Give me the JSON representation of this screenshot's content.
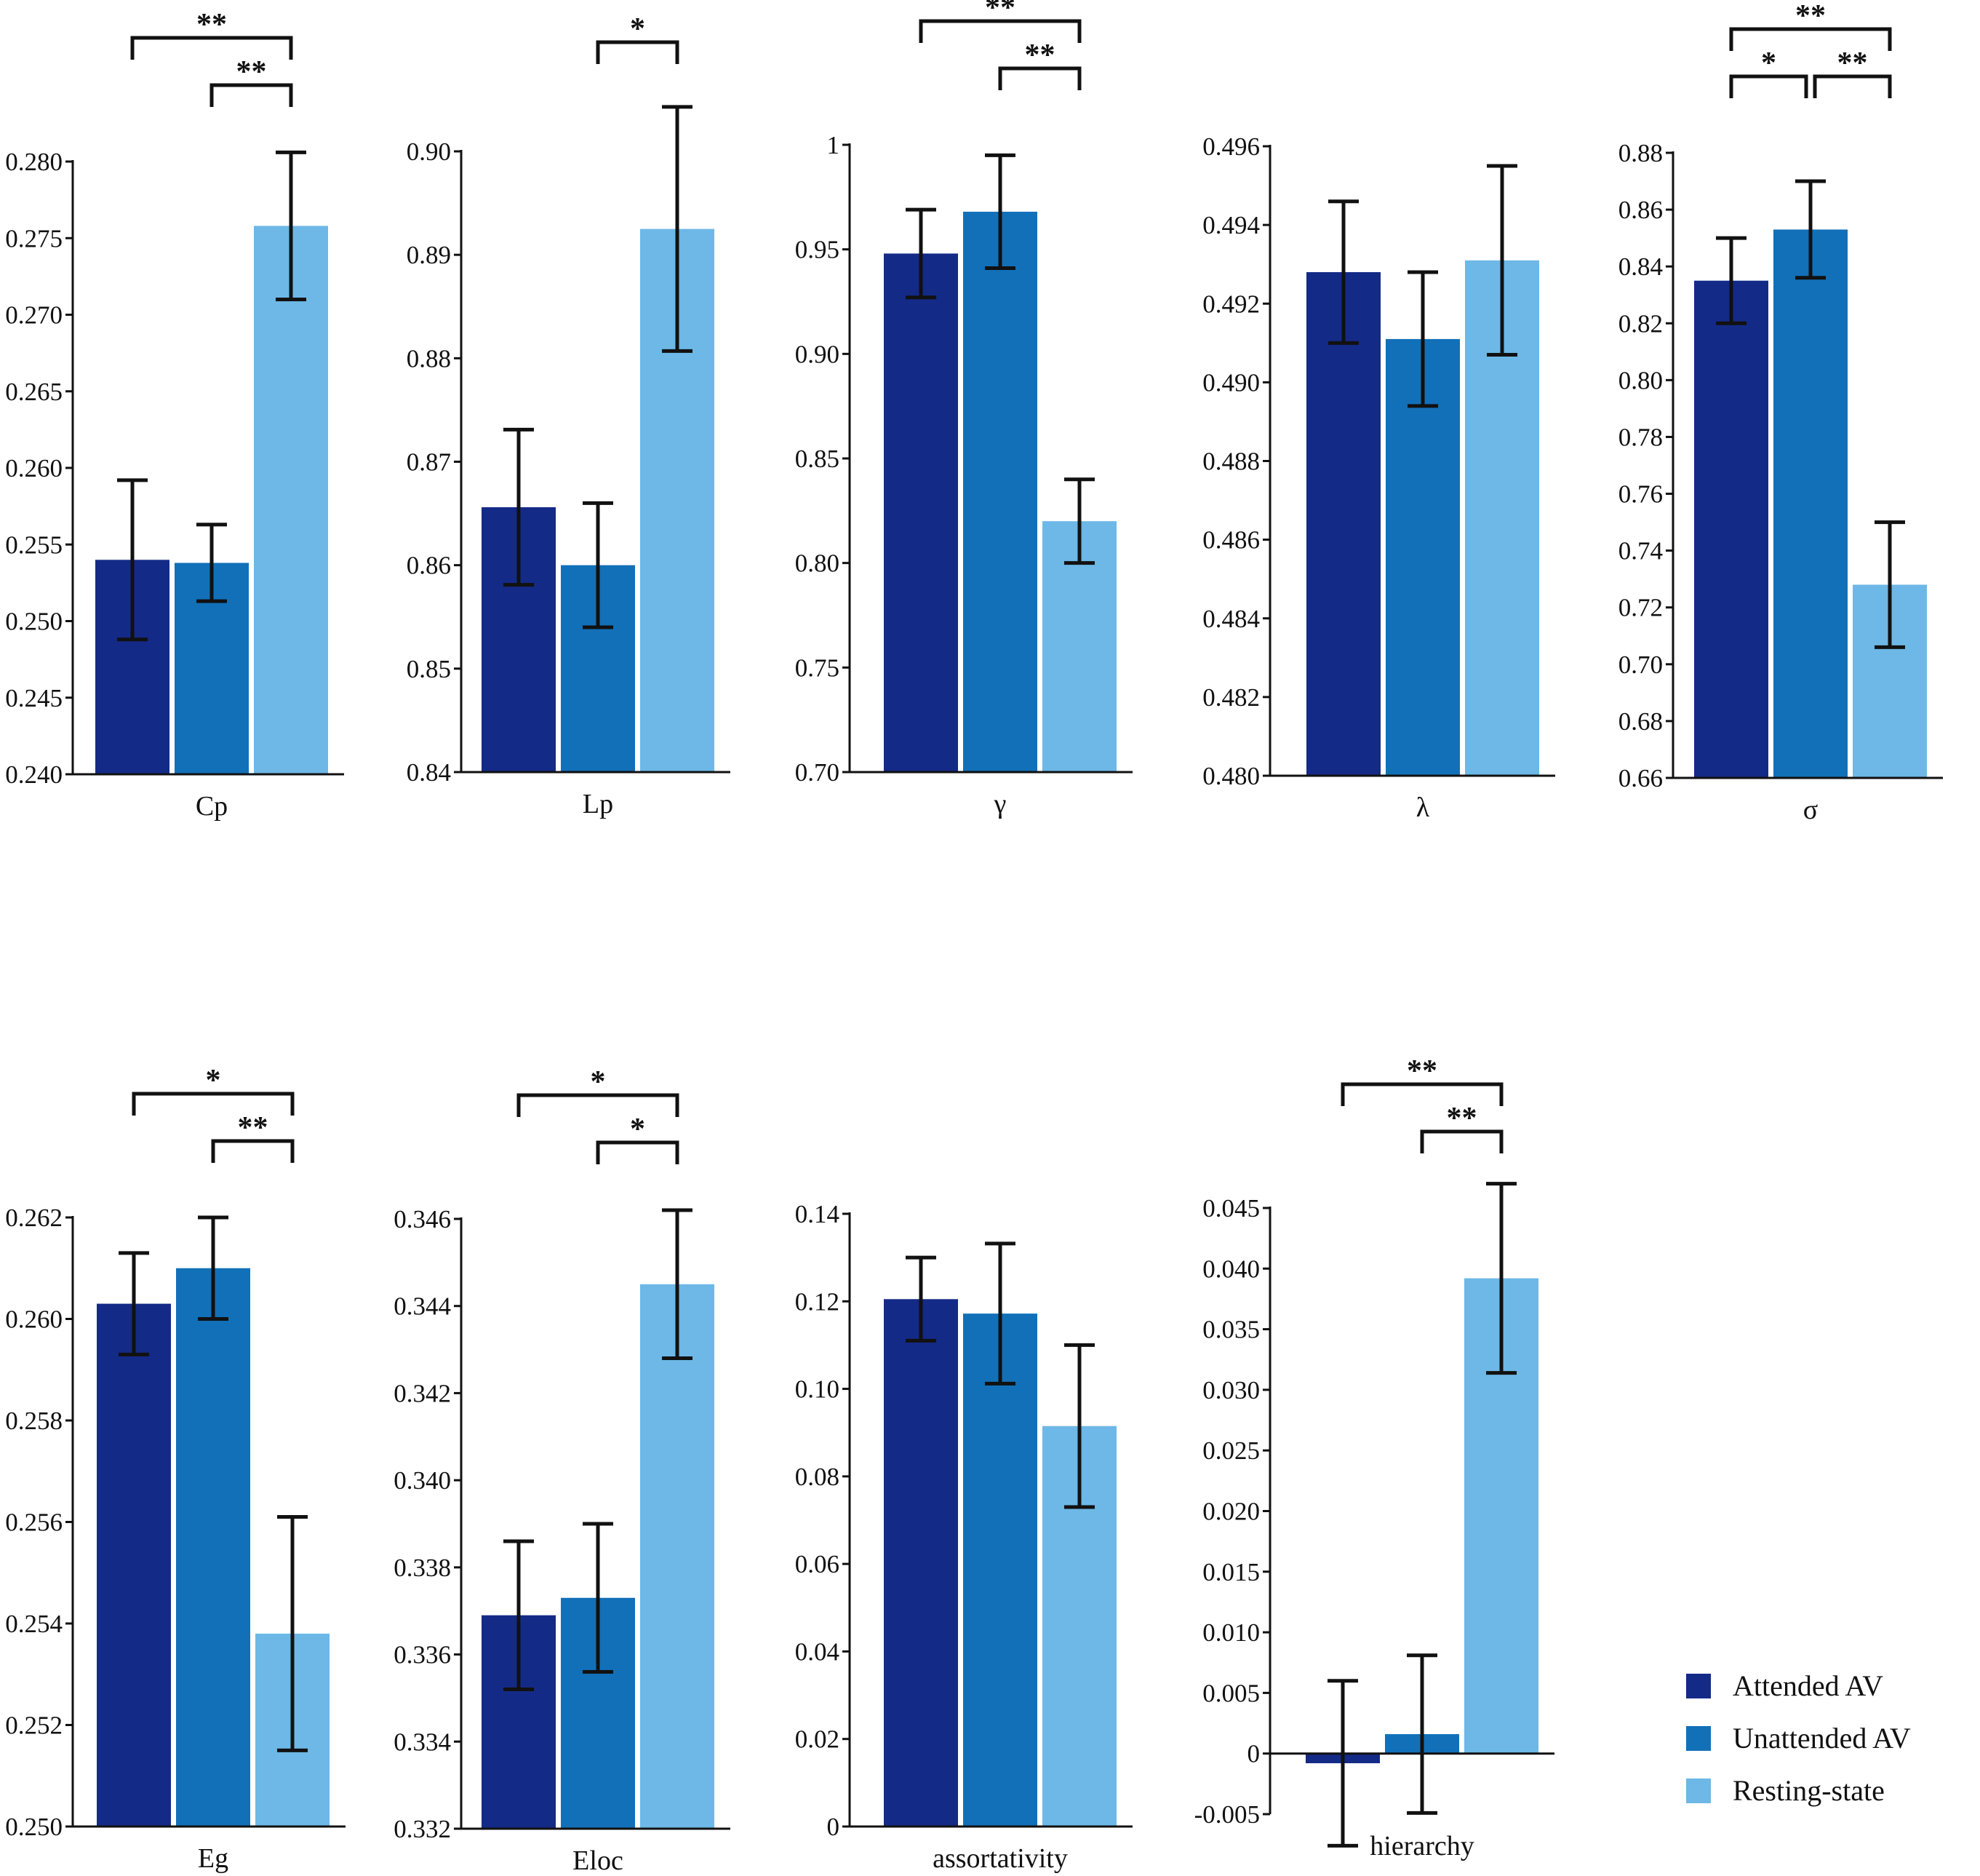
{
  "legend": {
    "items": [
      {
        "label": "Attended AV",
        "color": "#142a87"
      },
      {
        "label": "Unattended AV",
        "color": "#1270b8"
      },
      {
        "label": "Resting-state",
        "color": "#6db8e6"
      }
    ]
  },
  "chart_data": [
    {
      "type": "bar",
      "xlabel": "Cp",
      "series_values": [
        0.254,
        0.2538,
        0.2758
      ],
      "errors": [
        0.0052,
        0.0025,
        0.0048
      ],
      "ylim": [
        0.24,
        0.28
      ],
      "ticks": [
        0.24,
        0.245,
        0.25,
        0.255,
        0.26,
        0.265,
        0.27,
        0.275,
        0.28
      ],
      "tick_labels": [
        "0.240",
        "0.245",
        "0.250",
        "0.255",
        "0.260",
        "0.265",
        "0.270",
        "0.275",
        "0.280"
      ],
      "significance": [
        {
          "from": 0,
          "to": 2,
          "label": "**"
        },
        {
          "from": 1,
          "to": 2,
          "label": "**"
        }
      ]
    },
    {
      "type": "bar",
      "xlabel": "Lp",
      "series_values": [
        0.8656,
        0.86,
        0.8925
      ],
      "errors": [
        0.0075,
        0.006,
        0.0118
      ],
      "ylim": [
        0.84,
        0.9
      ],
      "ticks": [
        0.84,
        0.85,
        0.86,
        0.87,
        0.88,
        0.89,
        0.9
      ],
      "tick_labels": [
        "0.84",
        "0.85",
        "0.86",
        "0.87",
        "0.88",
        "0.89",
        "0.90"
      ],
      "significance": [
        {
          "from": 1,
          "to": 2,
          "label": "*"
        }
      ]
    },
    {
      "type": "bar",
      "xlabel": "γ",
      "series_values": [
        0.948,
        0.968,
        0.82
      ],
      "errors": [
        0.021,
        0.027,
        0.02
      ],
      "ylim": [
        0.7,
        1.0
      ],
      "ticks": [
        0.7,
        0.75,
        0.8,
        0.85,
        0.9,
        0.95,
        1.0
      ],
      "tick_labels": [
        "0.70",
        "0.75",
        "0.80",
        "0.85",
        "0.90",
        "0.95",
        "1"
      ],
      "significance": [
        {
          "from": 0,
          "to": 2,
          "label": "**"
        },
        {
          "from": 1,
          "to": 2,
          "label": "**"
        }
      ]
    },
    {
      "type": "bar",
      "xlabel": "λ",
      "series_values": [
        0.4928,
        0.4911,
        0.4931
      ],
      "errors": [
        0.0018,
        0.0017,
        0.0024
      ],
      "ylim": [
        0.48,
        0.496
      ],
      "ticks": [
        0.48,
        0.482,
        0.484,
        0.486,
        0.488,
        0.49,
        0.492,
        0.494,
        0.496
      ],
      "tick_labels": [
        "0.480",
        "0.482",
        "0.484",
        "0.486",
        "0.488",
        "0.490",
        "0.492",
        "0.494",
        "0.496"
      ],
      "significance": []
    },
    {
      "type": "bar",
      "xlabel": "σ",
      "series_values": [
        0.835,
        0.853,
        0.728
      ],
      "errors": [
        0.015,
        0.017,
        0.022
      ],
      "ylim": [
        0.66,
        0.88
      ],
      "ticks": [
        0.66,
        0.68,
        0.7,
        0.72,
        0.74,
        0.76,
        0.78,
        0.8,
        0.82,
        0.84,
        0.86,
        0.88
      ],
      "tick_labels": [
        "0.66",
        "0.68",
        "0.70",
        "0.72",
        "0.74",
        "0.76",
        "0.78",
        "0.80",
        "0.82",
        "0.84",
        "0.86",
        "0.88"
      ],
      "significance": [
        {
          "from": 0,
          "to": 2,
          "label": "**"
        },
        {
          "from": 0,
          "to": 1,
          "label": "*"
        },
        {
          "from": 1,
          "to": 2,
          "label": "**"
        }
      ]
    },
    {
      "type": "bar",
      "xlabel": "Eg",
      "series_values": [
        0.2603,
        0.261,
        0.2538
      ],
      "errors": [
        0.001,
        0.001,
        0.0023
      ],
      "ylim": [
        0.25,
        0.262
      ],
      "ticks": [
        0.25,
        0.252,
        0.254,
        0.256,
        0.258,
        0.26,
        0.262
      ],
      "tick_labels": [
        "0.250",
        "0.252",
        "0.254",
        "0.256",
        "0.258",
        "0.260",
        "0.262"
      ],
      "significance": [
        {
          "from": 0,
          "to": 2,
          "label": "*"
        },
        {
          "from": 1,
          "to": 2,
          "label": "**"
        }
      ]
    },
    {
      "type": "bar",
      "xlabel": "Eloc",
      "series_values": [
        0.3369,
        0.3373,
        0.3445
      ],
      "errors": [
        0.0017,
        0.0017,
        0.0017
      ],
      "ylim": [
        0.332,
        0.346
      ],
      "ticks": [
        0.332,
        0.334,
        0.336,
        0.338,
        0.34,
        0.342,
        0.344,
        0.346
      ],
      "tick_labels": [
        "0.332",
        "0.334",
        "0.336",
        "0.338",
        "0.340",
        "0.342",
        "0.344",
        "0.346"
      ],
      "significance": [
        {
          "from": 0,
          "to": 2,
          "label": "*"
        },
        {
          "from": 1,
          "to": 2,
          "label": "*"
        }
      ]
    },
    {
      "type": "bar",
      "xlabel": "assortativity",
      "series_values": [
        0.1205,
        0.1172,
        0.0915
      ],
      "errors": [
        0.0095,
        0.016,
        0.0185
      ],
      "ylim": [
        0,
        0.14
      ],
      "ticks": [
        0,
        0.02,
        0.04,
        0.06,
        0.08,
        0.1,
        0.12,
        0.14
      ],
      "tick_labels": [
        "0",
        "0.02",
        "0.04",
        "0.06",
        "0.08",
        "0.10",
        "0.12",
        "0.14"
      ],
      "significance": []
    },
    {
      "type": "bar",
      "xlabel": "hierarchy",
      "series_values": [
        -0.0008,
        0.0016,
        0.0392
      ],
      "errors": [
        0.0068,
        0.0065,
        0.0078
      ],
      "ylim": [
        -0.005,
        0.045
      ],
      "ticks": [
        -0.005,
        0,
        0.005,
        0.01,
        0.015,
        0.02,
        0.025,
        0.03,
        0.035,
        0.04,
        0.045
      ],
      "tick_labels": [
        "-0.005",
        "0",
        "0.005",
        "0.010",
        "0.015",
        "0.020",
        "0.025",
        "0.030",
        "0.035",
        "0.040",
        "0.045"
      ],
      "significance": [
        {
          "from": 0,
          "to": 2,
          "label": "**"
        },
        {
          "from": 1,
          "to": 2,
          "label": "**"
        }
      ]
    }
  ]
}
